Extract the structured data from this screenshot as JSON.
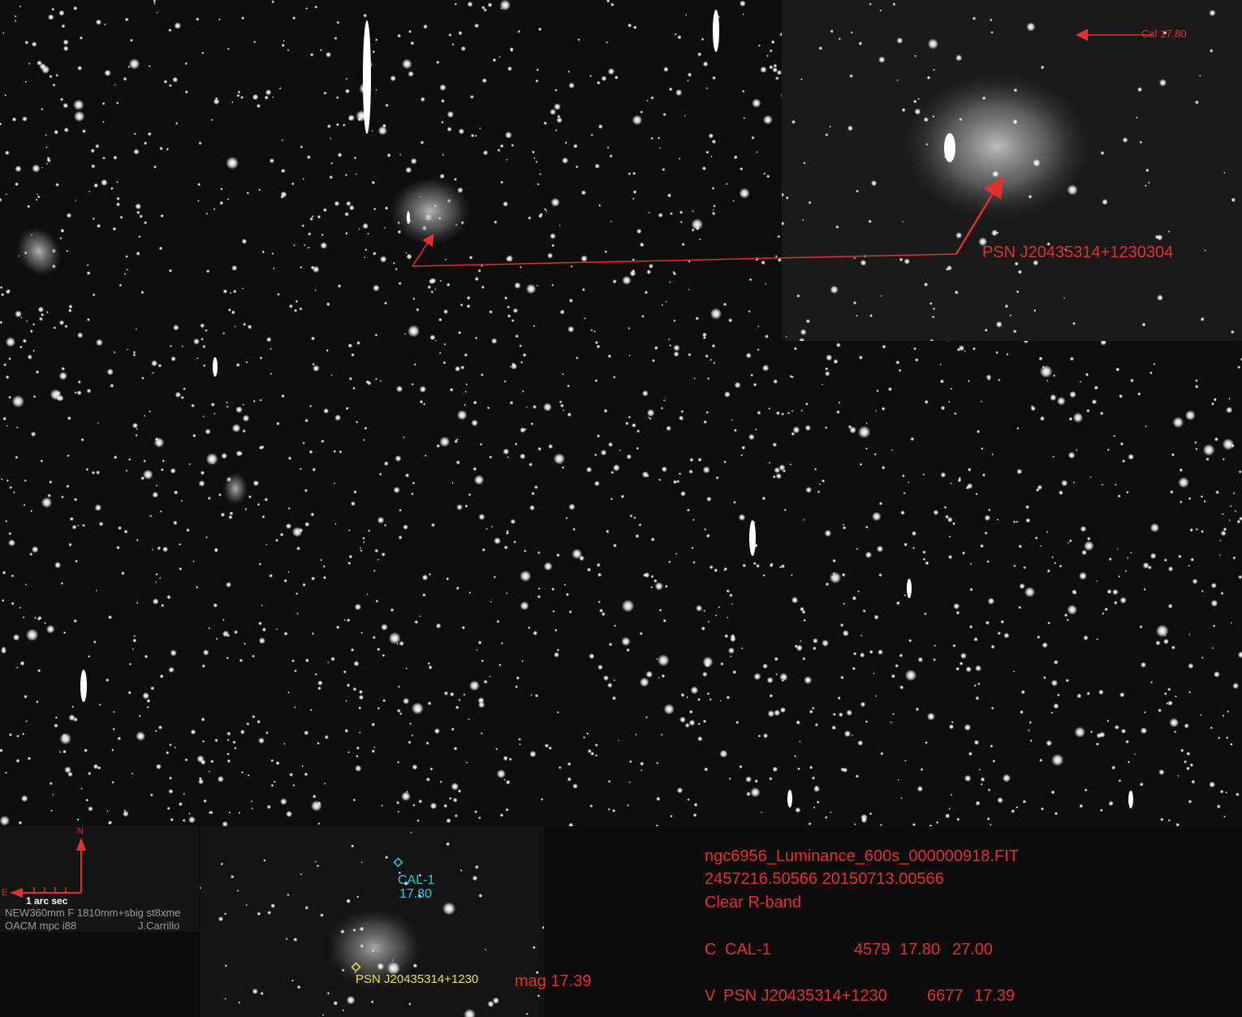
{
  "annotations": {
    "cal_top": "Cal 17.80",
    "psn_main": "PSN J20435314+1230304"
  },
  "compass": {
    "north": "N",
    "east": "E",
    "scale": "1 arc sec",
    "telescope": "NEW360mm F 1810mm+sbig st8xme",
    "observatory": "OACM mpc i88",
    "observer": "J.Carrillo"
  },
  "inset": {
    "cal_name": "CAL-1",
    "cal_mag": "17.80",
    "psn_label": "PSN J20435314+1230",
    "mag_label": "mag 17.39"
  },
  "info": {
    "filename": "ngc6956_Luminance_600s_000000918.FIT",
    "dates": "2457216.50566  20150713.00566",
    "band": "Clear R-band",
    "row_c": {
      "flag": "C",
      "name": "CAL-1",
      "v1": "4579",
      "v2": "17.80",
      "v3": "27.00"
    },
    "row_v": {
      "flag": "V",
      "name": "PSN J20435314+1230",
      "v1": "6677",
      "v2": "17.39"
    }
  },
  "colors": {
    "annotation_red": "#e0302f",
    "cal_cyan": "#33c9d6",
    "psn_yellow": "#e6e14a"
  }
}
